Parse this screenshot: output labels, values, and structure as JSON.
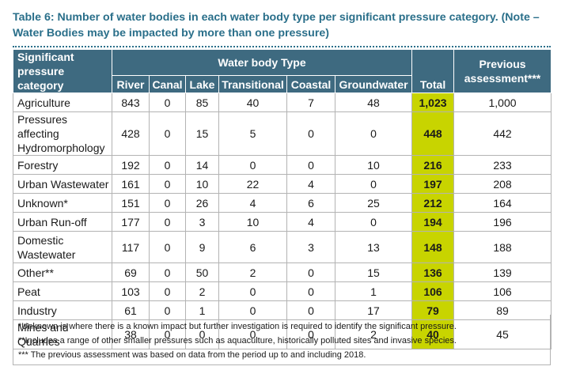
{
  "caption": "Table 6: Number of water bodies in each water body type per significant pressure category. (Note – Water Bodies may be impacted by more than one pressure)",
  "headers": {
    "pressure": "Significant pressure category",
    "group": "Water body Type",
    "total": "Total",
    "previous": "Previous assessment***",
    "types": [
      "River",
      "Canal",
      "Lake",
      "Transitional",
      "Coastal",
      "Groundwater"
    ]
  },
  "rows": [
    {
      "label": "Agriculture",
      "values": [
        "843",
        "0",
        "85",
        "40",
        "7",
        "48"
      ],
      "total": "1,023",
      "previous": "1,000"
    },
    {
      "label": "Pressures affecting Hydromorphology",
      "values": [
        "428",
        "0",
        "15",
        "5",
        "0",
        "0"
      ],
      "total": "448",
      "previous": "442"
    },
    {
      "label": "Forestry",
      "values": [
        "192",
        "0",
        "14",
        "0",
        "0",
        "10"
      ],
      "total": "216",
      "previous": "233"
    },
    {
      "label": "Urban Wastewater",
      "values": [
        "161",
        "0",
        "10",
        "22",
        "4",
        "0"
      ],
      "total": "197",
      "previous": "208"
    },
    {
      "label": "Unknown*",
      "values": [
        "151",
        "0",
        "26",
        "4",
        "6",
        "25"
      ],
      "total": "212",
      "previous": "164"
    },
    {
      "label": "Urban Run-off",
      "values": [
        "177",
        "0",
        "3",
        "10",
        "4",
        "0"
      ],
      "total": "194",
      "previous": "196"
    },
    {
      "label": "Domestic Wastewater",
      "values": [
        "117",
        "0",
        "9",
        "6",
        "3",
        "13"
      ],
      "total": "148",
      "previous": "188"
    },
    {
      "label": "Other**",
      "values": [
        "69",
        "0",
        "50",
        "2",
        "0",
        "15"
      ],
      "total": "136",
      "previous": "139"
    },
    {
      "label": "Peat",
      "values": [
        "103",
        "0",
        "2",
        "0",
        "0",
        "1"
      ],
      "total": "106",
      "previous": "106"
    },
    {
      "label": "Industry",
      "values": [
        "61",
        "0",
        "1",
        "0",
        "0",
        "17"
      ],
      "total": "79",
      "previous": "89"
    },
    {
      "label": "Mines and Quarries",
      "values": [
        "38",
        "0",
        "0",
        "0",
        "0",
        "2"
      ],
      "total": "40",
      "previous": "45"
    }
  ],
  "notes": [
    "*Unknown is where there is a known impact but further investigation is required to identify the significant pressure.",
    "**Includes a range of other smaller pressures such as aquaculture, historically polluted sites and invasive species.",
    "*** The previous assessment was based on data from the period up to and including 2018."
  ],
  "colors": {
    "caption": "#2a6f8a",
    "header_bg": "#3e6a80",
    "total_highlight": "#c8d400"
  }
}
